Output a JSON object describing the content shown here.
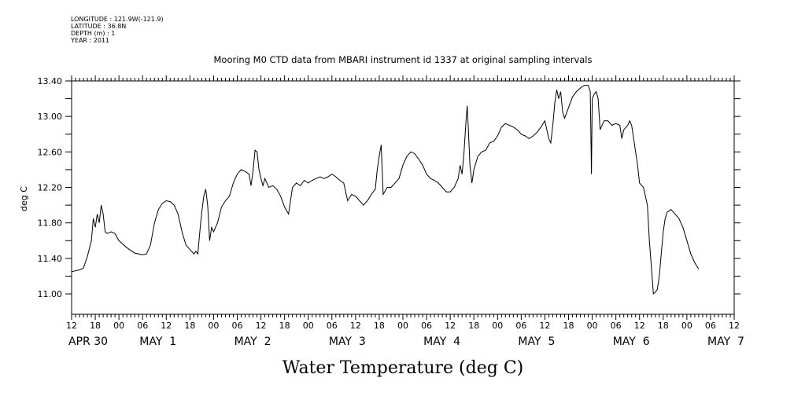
{
  "meta": {
    "longitude": "LONGITUDE : 121.9W(-121.9)",
    "latitude": "LATITUDE : 36.8N",
    "depth": "DEPTH (m) : 1",
    "year": "YEAR : 2011"
  },
  "chart_data": {
    "type": "line",
    "title": "Mooring M0 CTD data from MBARI instrument id 1337 at original sampling intervals",
    "ylabel": "deg C",
    "xlabel": "Water Temperature (deg C)",
    "ylim": [
      10.77,
      13.4
    ],
    "xlim_hours": [
      0,
      168
    ],
    "y_ticks": [
      "11.00",
      "11.40",
      "11.80",
      "12.20",
      "12.60",
      "13.00",
      "13.40"
    ],
    "x_hour_labels": [
      "12",
      "18",
      "00",
      "06",
      "12",
      "18",
      "00",
      "06",
      "12",
      "18",
      "00",
      "06",
      "12",
      "18",
      "00",
      "06",
      "12",
      "18",
      "00",
      "06",
      "12",
      "18",
      "00",
      "06",
      "12",
      "18",
      "00",
      "06",
      "12"
    ],
    "day_labels": [
      "APR 30",
      "MAY  1",
      "MAY  2",
      "MAY  3",
      "MAY  4",
      "MAY  5",
      "MAY  6",
      "MAY  7"
    ],
    "grid": false,
    "series": [
      {
        "points": [
          [
            0,
            11.25
          ],
          [
            2,
            11.27
          ],
          [
            3,
            11.29
          ],
          [
            4,
            11.42
          ],
          [
            5,
            11.6
          ],
          [
            5.5,
            11.85
          ],
          [
            6,
            11.75
          ],
          [
            6.5,
            11.9
          ],
          [
            7,
            11.8
          ],
          [
            7.5,
            12.0
          ],
          [
            8,
            11.9
          ],
          [
            8.5,
            11.7
          ],
          [
            9,
            11.68
          ],
          [
            10,
            11.7
          ],
          [
            11,
            11.68
          ],
          [
            12,
            11.6
          ],
          [
            14,
            11.52
          ],
          [
            16,
            11.46
          ],
          [
            18,
            11.44
          ],
          [
            19,
            11.45
          ],
          [
            20,
            11.55
          ],
          [
            21,
            11.8
          ],
          [
            22,
            11.95
          ],
          [
            23,
            12.02
          ],
          [
            24,
            12.05
          ],
          [
            25,
            12.04
          ],
          [
            26,
            12.0
          ],
          [
            27,
            11.9
          ],
          [
            28,
            11.7
          ],
          [
            29,
            11.55
          ],
          [
            30,
            11.5
          ],
          [
            31,
            11.45
          ],
          [
            31.5,
            11.48
          ],
          [
            32,
            11.45
          ],
          [
            32.5,
            11.7
          ],
          [
            33,
            11.92
          ],
          [
            33.5,
            12.1
          ],
          [
            34,
            12.18
          ],
          [
            34.5,
            12.0
          ],
          [
            35,
            11.6
          ],
          [
            35.5,
            11.75
          ],
          [
            36,
            11.7
          ],
          [
            37,
            11.8
          ],
          [
            38,
            11.98
          ],
          [
            39,
            12.05
          ],
          [
            40,
            12.1
          ],
          [
            41,
            12.25
          ],
          [
            42,
            12.35
          ],
          [
            43,
            12.4
          ],
          [
            44,
            12.38
          ],
          [
            45,
            12.35
          ],
          [
            45.5,
            12.22
          ],
          [
            46,
            12.38
          ],
          [
            46.5,
            12.62
          ],
          [
            47,
            12.6
          ],
          [
            47.5,
            12.4
          ],
          [
            48,
            12.3
          ],
          [
            48.5,
            12.22
          ],
          [
            49,
            12.3
          ],
          [
            50,
            12.2
          ],
          [
            51,
            12.22
          ],
          [
            52,
            12.18
          ],
          [
            53,
            12.1
          ],
          [
            54,
            11.98
          ],
          [
            55,
            11.9
          ],
          [
            55.5,
            12.05
          ],
          [
            56,
            12.2
          ],
          [
            57,
            12.25
          ],
          [
            58,
            12.22
          ],
          [
            59,
            12.28
          ],
          [
            60,
            12.25
          ],
          [
            61,
            12.28
          ],
          [
            62,
            12.3
          ],
          [
            63,
            12.32
          ],
          [
            64,
            12.3
          ],
          [
            65,
            12.32
          ],
          [
            66,
            12.35
          ],
          [
            67,
            12.32
          ],
          [
            68,
            12.28
          ],
          [
            69,
            12.25
          ],
          [
            70,
            12.05
          ],
          [
            71,
            12.12
          ],
          [
            72,
            12.1
          ],
          [
            73,
            12.05
          ],
          [
            74,
            12.0
          ],
          [
            75,
            12.05
          ],
          [
            76,
            12.12
          ],
          [
            77,
            12.18
          ],
          [
            77.5,
            12.4
          ],
          [
            78,
            12.55
          ],
          [
            78.5,
            12.68
          ],
          [
            79,
            12.12
          ],
          [
            80,
            12.2
          ],
          [
            81,
            12.2
          ],
          [
            82,
            12.25
          ],
          [
            83,
            12.3
          ],
          [
            84,
            12.45
          ],
          [
            85,
            12.55
          ],
          [
            86,
            12.6
          ],
          [
            87,
            12.58
          ],
          [
            88,
            12.52
          ],
          [
            89,
            12.45
          ],
          [
            90,
            12.35
          ],
          [
            91,
            12.3
          ],
          [
            92,
            12.28
          ],
          [
            93,
            12.25
          ],
          [
            94,
            12.2
          ],
          [
            95,
            12.15
          ],
          [
            96,
            12.15
          ],
          [
            97,
            12.2
          ],
          [
            98,
            12.3
          ],
          [
            98.5,
            12.45
          ],
          [
            99,
            12.35
          ],
          [
            99.5,
            12.6
          ],
          [
            100,
            12.95
          ],
          [
            100.3,
            13.12
          ],
          [
            100.6,
            12.85
          ],
          [
            101,
            12.45
          ],
          [
            101.5,
            12.25
          ],
          [
            102,
            12.4
          ],
          [
            103,
            12.55
          ],
          [
            104,
            12.6
          ],
          [
            105,
            12.62
          ],
          [
            106,
            12.7
          ],
          [
            107,
            12.72
          ],
          [
            108,
            12.78
          ],
          [
            109,
            12.88
          ],
          [
            110,
            12.92
          ],
          [
            111,
            12.9
          ],
          [
            112,
            12.88
          ],
          [
            113,
            12.85
          ],
          [
            114,
            12.8
          ],
          [
            115,
            12.78
          ],
          [
            116,
            12.75
          ],
          [
            117,
            12.78
          ],
          [
            118,
            12.82
          ],
          [
            119,
            12.88
          ],
          [
            120,
            12.95
          ],
          [
            120.5,
            12.85
          ],
          [
            121,
            12.75
          ],
          [
            121.5,
            12.7
          ],
          [
            122,
            12.9
          ],
          [
            122.5,
            13.15
          ],
          [
            123,
            13.3
          ],
          [
            123.5,
            13.2
          ],
          [
            124,
            13.28
          ],
          [
            124.5,
            13.05
          ],
          [
            125,
            12.98
          ],
          [
            126,
            13.1
          ],
          [
            127,
            13.22
          ],
          [
            128,
            13.28
          ],
          [
            129,
            13.32
          ],
          [
            130,
            13.35
          ],
          [
            131,
            13.35
          ],
          [
            131.5,
            13.28
          ],
          [
            131.8,
            12.35
          ],
          [
            132,
            13.2
          ],
          [
            132.5,
            13.25
          ],
          [
            133,
            13.28
          ],
          [
            133.5,
            13.2
          ],
          [
            134,
            12.85
          ],
          [
            135,
            12.95
          ],
          [
            136,
            12.95
          ],
          [
            137,
            12.9
          ],
          [
            138,
            12.92
          ],
          [
            139,
            12.9
          ],
          [
            139.5,
            12.75
          ],
          [
            140,
            12.85
          ],
          [
            141,
            12.9
          ],
          [
            141.5,
            12.95
          ],
          [
            142,
            12.9
          ],
          [
            143,
            12.6
          ],
          [
            143.5,
            12.45
          ],
          [
            144,
            12.25
          ],
          [
            145,
            12.2
          ],
          [
            146,
            12.0
          ],
          [
            146.5,
            11.6
          ],
          [
            147,
            11.3
          ],
          [
            147.5,
            11.0
          ],
          [
            148,
            11.02
          ],
          [
            148.5,
            11.05
          ],
          [
            149,
            11.2
          ],
          [
            149.5,
            11.45
          ],
          [
            150,
            11.7
          ],
          [
            150.5,
            11.85
          ],
          [
            151,
            11.92
          ],
          [
            152,
            11.95
          ],
          [
            153,
            11.9
          ],
          [
            154,
            11.85
          ],
          [
            155,
            11.75
          ],
          [
            156,
            11.6
          ],
          [
            157,
            11.45
          ],
          [
            158,
            11.35
          ],
          [
            159,
            11.28
          ]
        ]
      }
    ]
  }
}
